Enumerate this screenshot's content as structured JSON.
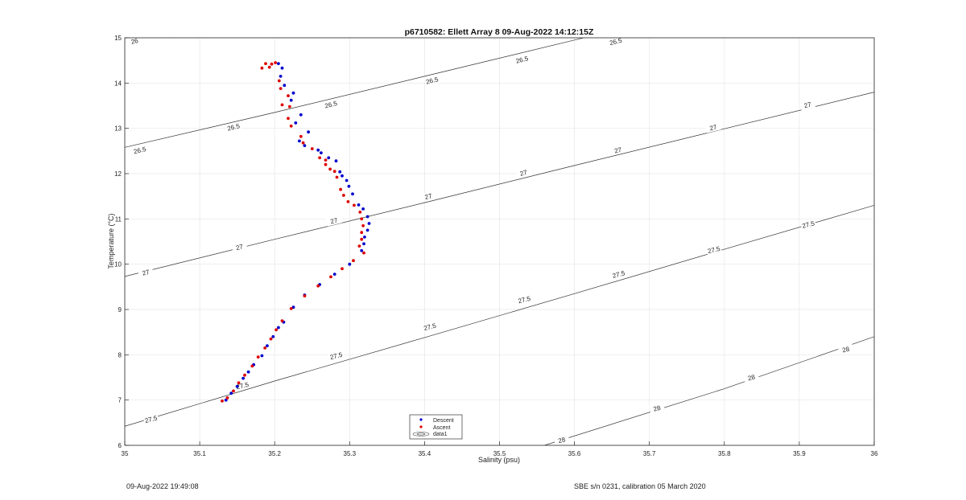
{
  "footer": {
    "left": "09-Aug-2022 19:49:08",
    "right": "SBE s/n 0231, calibration 05 March 2020"
  },
  "chart_data": {
    "type": "scatter",
    "title": "p6710582: Ellett Array 8 09-Aug-2022 14:12:15Z",
    "xlabel": "Salinity (psu)",
    "ylabel": "Temperature (°C)",
    "xlim": [
      35,
      36
    ],
    "ylim": [
      6,
      15
    ],
    "xticks": [
      "35",
      "35.1",
      "35.2",
      "35.3",
      "35.4",
      "35.5",
      "35.6",
      "35.7",
      "35.8",
      "35.9",
      "36"
    ],
    "yticks": [
      "6",
      "7",
      "8",
      "9",
      "10",
      "11",
      "12",
      "13",
      "14",
      "15"
    ],
    "grid": true,
    "legend_position": "bottom-center",
    "legend": [
      "Descent",
      "Ascent",
      "data1"
    ],
    "colors": {
      "descent": "#0000cc",
      "ascent": "#dd0000",
      "contour": "#333333",
      "grid": "#e6e6e6"
    },
    "contours": [
      {
        "label": "26",
        "points": [
          [
            35.0,
            15.25
          ],
          [
            35.06,
            15.0
          ]
        ],
        "label_positions": [
          [
            35.013,
            14.93
          ]
        ]
      },
      {
        "label": "26.5",
        "points": [
          [
            35.0,
            12.58
          ],
          [
            35.2,
            13.35
          ],
          [
            35.4,
            14.15
          ],
          [
            35.6,
            14.95
          ],
          [
            35.7,
            15.35
          ]
        ],
        "label_positions": [
          [
            35.02,
            12.52
          ],
          [
            35.145,
            13.03
          ],
          [
            35.275,
            13.53
          ],
          [
            35.41,
            14.06
          ],
          [
            35.53,
            14.52
          ],
          [
            35.655,
            14.92
          ]
        ]
      },
      {
        "label": "27",
        "points": [
          [
            35.0,
            9.73
          ],
          [
            35.2,
            10.55
          ],
          [
            35.4,
            11.36
          ],
          [
            35.6,
            12.18
          ],
          [
            35.8,
            12.99
          ],
          [
            36.0,
            13.8
          ]
        ],
        "label_positions": [
          [
            35.028,
            9.82
          ],
          [
            35.153,
            10.38
          ],
          [
            35.279,
            10.96
          ],
          [
            35.405,
            11.5
          ],
          [
            35.532,
            12.02
          ],
          [
            35.658,
            12.52
          ],
          [
            35.785,
            13.02
          ],
          [
            35.911,
            13.52
          ]
        ]
      },
      {
        "label": "27.5",
        "points": [
          [
            35.0,
            6.42
          ],
          [
            35.2,
            7.42
          ],
          [
            35.4,
            8.38
          ],
          [
            35.6,
            9.35
          ],
          [
            35.8,
            10.33
          ],
          [
            36.0,
            11.3
          ]
        ],
        "label_positions": [
          [
            35.035,
            6.58
          ],
          [
            35.157,
            7.32
          ],
          [
            35.282,
            7.98
          ],
          [
            35.407,
            8.62
          ],
          [
            35.533,
            9.22
          ],
          [
            35.659,
            9.78
          ],
          [
            35.786,
            10.32
          ],
          [
            35.912,
            10.88
          ]
        ]
      },
      {
        "label": "28",
        "points": [
          [
            35.56,
            6.0
          ],
          [
            35.8,
            7.25
          ],
          [
            36.0,
            8.4
          ]
        ],
        "label_positions": [
          [
            35.583,
            6.12
          ],
          [
            35.71,
            6.82
          ],
          [
            35.836,
            7.5
          ],
          [
            35.962,
            8.12
          ]
        ]
      }
    ],
    "series": [
      {
        "name": "Descent",
        "marker": "dot",
        "color": "#0000cc",
        "points": [
          [
            35.205,
            14.43
          ],
          [
            35.21,
            14.33
          ],
          [
            35.208,
            14.15
          ],
          [
            35.213,
            13.95
          ],
          [
            35.225,
            13.78
          ],
          [
            35.222,
            13.62
          ],
          [
            35.235,
            13.3
          ],
          [
            35.228,
            13.12
          ],
          [
            35.245,
            12.92
          ],
          [
            35.233,
            12.72
          ],
          [
            35.24,
            12.62
          ],
          [
            35.258,
            12.52
          ],
          [
            35.262,
            12.46
          ],
          [
            35.272,
            12.35
          ],
          [
            35.282,
            12.28
          ],
          [
            35.287,
            12.04
          ],
          [
            35.29,
            11.95
          ],
          [
            35.296,
            11.85
          ],
          [
            35.299,
            11.72
          ],
          [
            35.304,
            11.55
          ],
          [
            35.312,
            11.31
          ],
          [
            35.318,
            11.22
          ],
          [
            35.324,
            11.05
          ],
          [
            35.326,
            10.9
          ],
          [
            35.324,
            10.75
          ],
          [
            35.32,
            10.6
          ],
          [
            35.319,
            10.45
          ],
          [
            35.316,
            10.3
          ],
          [
            35.3,
            10.0
          ],
          [
            35.28,
            9.78
          ],
          [
            35.26,
            9.55
          ],
          [
            35.24,
            9.32
          ],
          [
            35.225,
            9.05
          ],
          [
            35.212,
            8.72
          ],
          [
            35.205,
            8.6
          ],
          [
            35.198,
            8.4
          ],
          [
            35.19,
            8.2
          ],
          [
            35.183,
            7.98
          ],
          [
            35.172,
            7.78
          ],
          [
            35.165,
            7.62
          ],
          [
            35.158,
            7.48
          ],
          [
            35.15,
            7.3
          ],
          [
            35.142,
            7.15
          ],
          [
            35.135,
            7.0
          ]
        ]
      },
      {
        "name": "Ascent",
        "marker": "dot",
        "color": "#dd0000",
        "points": [
          [
            35.188,
            14.43
          ],
          [
            35.196,
            14.42
          ],
          [
            35.183,
            14.33
          ],
          [
            35.193,
            14.35
          ],
          [
            35.201,
            14.45
          ],
          [
            35.206,
            14.05
          ],
          [
            35.208,
            13.88
          ],
          [
            35.218,
            13.72
          ],
          [
            35.21,
            13.52
          ],
          [
            35.22,
            13.48
          ],
          [
            35.218,
            13.22
          ],
          [
            35.222,
            13.05
          ],
          [
            35.235,
            12.82
          ],
          [
            35.238,
            12.68
          ],
          [
            35.25,
            12.55
          ],
          [
            35.26,
            12.35
          ],
          [
            35.268,
            12.3
          ],
          [
            35.268,
            12.2
          ],
          [
            35.274,
            12.1
          ],
          [
            35.28,
            12.05
          ],
          [
            35.283,
            11.92
          ],
          [
            35.288,
            11.65
          ],
          [
            35.292,
            11.52
          ],
          [
            35.298,
            11.38
          ],
          [
            35.306,
            11.3
          ],
          [
            35.314,
            11.15
          ],
          [
            35.316,
            11.0
          ],
          [
            35.318,
            10.85
          ],
          [
            35.316,
            10.7
          ],
          [
            35.316,
            10.55
          ],
          [
            35.313,
            10.4
          ],
          [
            35.319,
            10.25
          ],
          [
            35.305,
            10.08
          ],
          [
            35.29,
            9.9
          ],
          [
            35.275,
            9.72
          ],
          [
            35.258,
            9.52
          ],
          [
            35.24,
            9.3
          ],
          [
            35.222,
            9.02
          ],
          [
            35.21,
            8.75
          ],
          [
            35.202,
            8.55
          ],
          [
            35.195,
            8.35
          ],
          [
            35.187,
            8.15
          ],
          [
            35.178,
            7.95
          ],
          [
            35.17,
            7.75
          ],
          [
            35.16,
            7.55
          ],
          [
            35.152,
            7.38
          ],
          [
            35.145,
            7.2
          ],
          [
            35.137,
            7.05
          ],
          [
            35.13,
            6.98
          ]
        ]
      }
    ]
  }
}
